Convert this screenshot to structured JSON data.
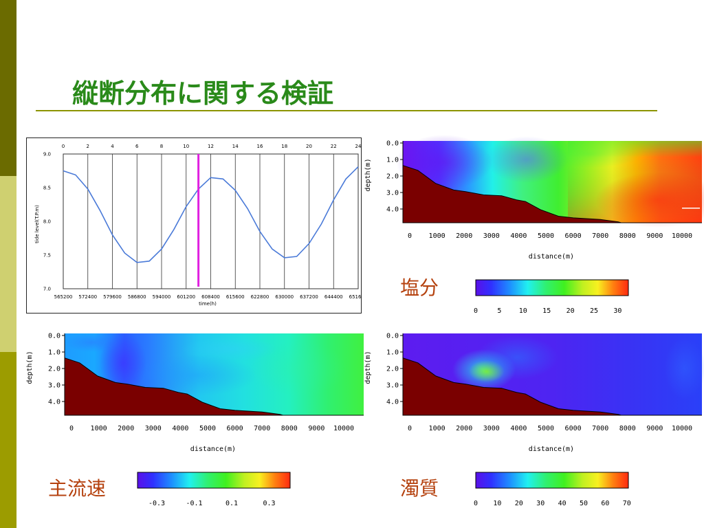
{
  "slide": {
    "title": "縦断分布に関する検証",
    "colors": {
      "title": "#2a8a1a",
      "rule": "#8c9400",
      "sidebar_dark": "#6b6b00",
      "sidebar_mid": "#cfd070",
      "sidebar_light": "#9c9c00",
      "label": "#b5420f",
      "bathymetry": "#7a0000"
    },
    "panels": {
      "salinity_label": "塩分",
      "velocity_label": "主流速",
      "turbidity_label": "濁質"
    }
  },
  "chart_data": [
    {
      "type": "line",
      "title": "",
      "xlabel": "time(h)",
      "ylabel": "tide level(T.P.m)",
      "x": [
        565200,
        568800,
        572400,
        576000,
        579600,
        583200,
        586800,
        590400,
        594000,
        597600,
        601200,
        604800,
        608400,
        612000,
        615600,
        619200,
        622800,
        626400,
        630000,
        633600,
        637200,
        640800,
        644400,
        648000,
        651600
      ],
      "series": [
        {
          "values": [
            8.75,
            8.69,
            8.48,
            8.16,
            7.8,
            7.53,
            7.39,
            7.41,
            7.59,
            7.88,
            8.22,
            8.48,
            8.65,
            8.63,
            8.46,
            8.19,
            7.85,
            7.59,
            7.46,
            7.48,
            7.67,
            7.96,
            8.32,
            8.63,
            8.81
          ]
        }
      ],
      "xlim": [
        565200,
        651600
      ],
      "ylim": [
        7.0,
        9.0
      ],
      "x_ticks": [
        "565200",
        "572400",
        "579600",
        "586800",
        "594000",
        "601200",
        "608400",
        "615600",
        "622800",
        "630000",
        "637200",
        "644400",
        "651600"
      ],
      "y_ticks": [
        "7.0",
        "7.5",
        "8.0",
        "8.5",
        "9.0"
      ],
      "top_ticks": [
        "0",
        "2",
        "4",
        "6",
        "8",
        "10",
        "12",
        "14",
        "16",
        "18",
        "20",
        "22",
        "24"
      ],
      "marker_hour": 11,
      "grid": true,
      "line_color": "#4a7ad8",
      "marker_color": "#e020e0"
    },
    {
      "type": "heatmap",
      "name": "salinity",
      "xlabel": "distance(m)",
      "ylabel": "depth(m)",
      "x_ticks": [
        "0",
        "1000",
        "2000",
        "3000",
        "4000",
        "5000",
        "6000",
        "7000",
        "8000",
        "9000",
        "10000"
      ],
      "y_ticks": [
        "0.0",
        "1.0",
        "2.0",
        "3.0",
        "4.0"
      ],
      "colorbar_ticks": [
        "0",
        "5",
        "10",
        "15",
        "20",
        "25",
        "30"
      ],
      "colorbar_range": [
        0,
        32
      ]
    },
    {
      "type": "heatmap",
      "name": "velocity",
      "xlabel": "distance(m)",
      "ylabel": "depth(m)",
      "x_ticks": [
        "0",
        "1000",
        "2000",
        "3000",
        "4000",
        "5000",
        "6000",
        "7000",
        "8000",
        "9000",
        "10000"
      ],
      "y_ticks": [
        "0.0",
        "1.0",
        "2.0",
        "3.0",
        "4.0"
      ],
      "colorbar_ticks": [
        "-0.3",
        "-0.1",
        "0.1",
        "0.3"
      ],
      "colorbar_range": [
        -0.4,
        0.4
      ]
    },
    {
      "type": "heatmap",
      "name": "turbidity",
      "xlabel": "distance(m)",
      "ylabel": "depth(m)",
      "x_ticks": [
        "0",
        "1000",
        "2000",
        "3000",
        "4000",
        "5000",
        "6000",
        "7000",
        "8000",
        "9000",
        "10000"
      ],
      "y_ticks": [
        "0.0",
        "1.0",
        "2.0",
        "3.0",
        "4.0"
      ],
      "colorbar_ticks": [
        "0",
        "10",
        "20",
        "30",
        "40",
        "50",
        "60",
        "70"
      ],
      "colorbar_range": [
        0,
        72
      ]
    }
  ]
}
